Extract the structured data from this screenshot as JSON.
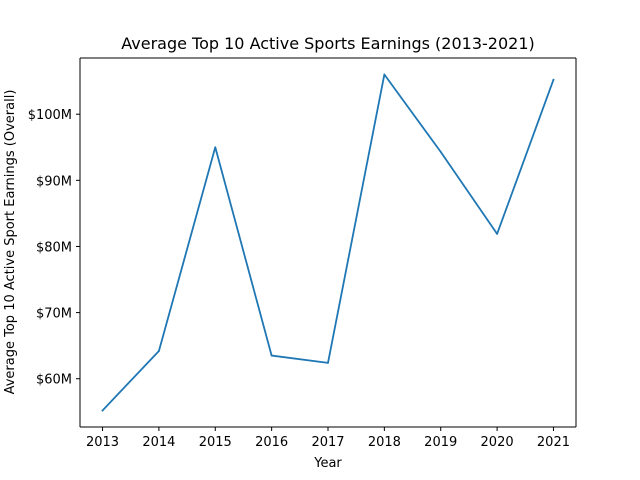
{
  "chart_data": {
    "type": "line",
    "title": "Average Top 10 Active Sports Earnings (2013-2021)",
    "xlabel": "Year",
    "ylabel": "Average Top 10 Active Sport Earnings (Overall)",
    "x": [
      2013,
      2014,
      2015,
      2016,
      2017,
      2018,
      2019,
      2020,
      2021
    ],
    "x_tick_labels": [
      "2013",
      "2014",
      "2015",
      "2016",
      "2017",
      "2018",
      "2019",
      "2020",
      "2021"
    ],
    "series": [
      {
        "values": [
          55.2,
          64.2,
          95.0,
          63.5,
          62.4,
          106.0,
          94.3,
          81.9,
          105.2
        ],
        "color": "#1f77b4"
      }
    ],
    "y_ticks": [
      60,
      70,
      80,
      90,
      100
    ],
    "y_tick_labels": [
      "$60M",
      "$70M",
      "$80M",
      "$90M",
      "$100M"
    ],
    "xlim": [
      2012.6,
      2021.4
    ],
    "ylim": [
      52.7,
      108.5
    ],
    "grid": false,
    "legend": "none"
  }
}
